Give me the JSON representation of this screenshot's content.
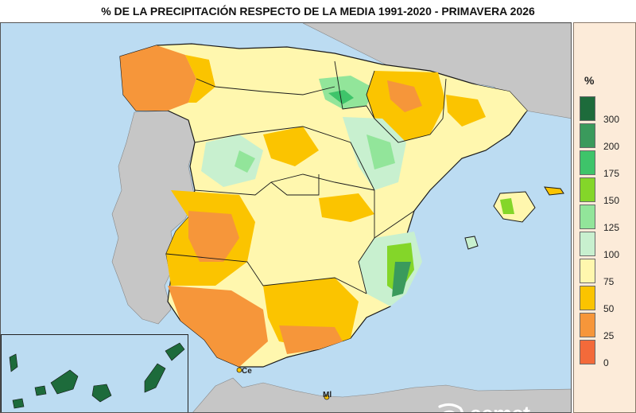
{
  "title": "% DE LA PRECIPITACIÓN RESPECTO DE LA MEDIA 1991-2020 - PRIMAVERA 2026",
  "legend": {
    "unit": "%",
    "classes": [
      {
        "label": "300",
        "color": "#1d6b3b"
      },
      {
        "label": "200",
        "color": "#3a9a5c"
      },
      {
        "label": "175",
        "color": "#3ec46a"
      },
      {
        "label": "150",
        "color": "#84d629"
      },
      {
        "label": "125",
        "color": "#92e59a"
      },
      {
        "label": "100",
        "color": "#c8f0cf"
      },
      {
        "label": "75",
        "color": "#fff7ae"
      },
      {
        "label": "50",
        "color": "#fbc400"
      },
      {
        "label": "25",
        "color": "#f6963a"
      },
      {
        "label": "0",
        "color": "#f36a3a"
      }
    ],
    "below_color": "#f36a3a"
  },
  "labels": {
    "ceuta": "Ce",
    "melilla": "Ml"
  },
  "logo": {
    "text": "aemet",
    "icon": "aemet-logo-icon"
  },
  "colors": {
    "sea": "#bcdcf2",
    "land_foreign": "#c6c6c6",
    "border": "#1a1a1a"
  }
}
